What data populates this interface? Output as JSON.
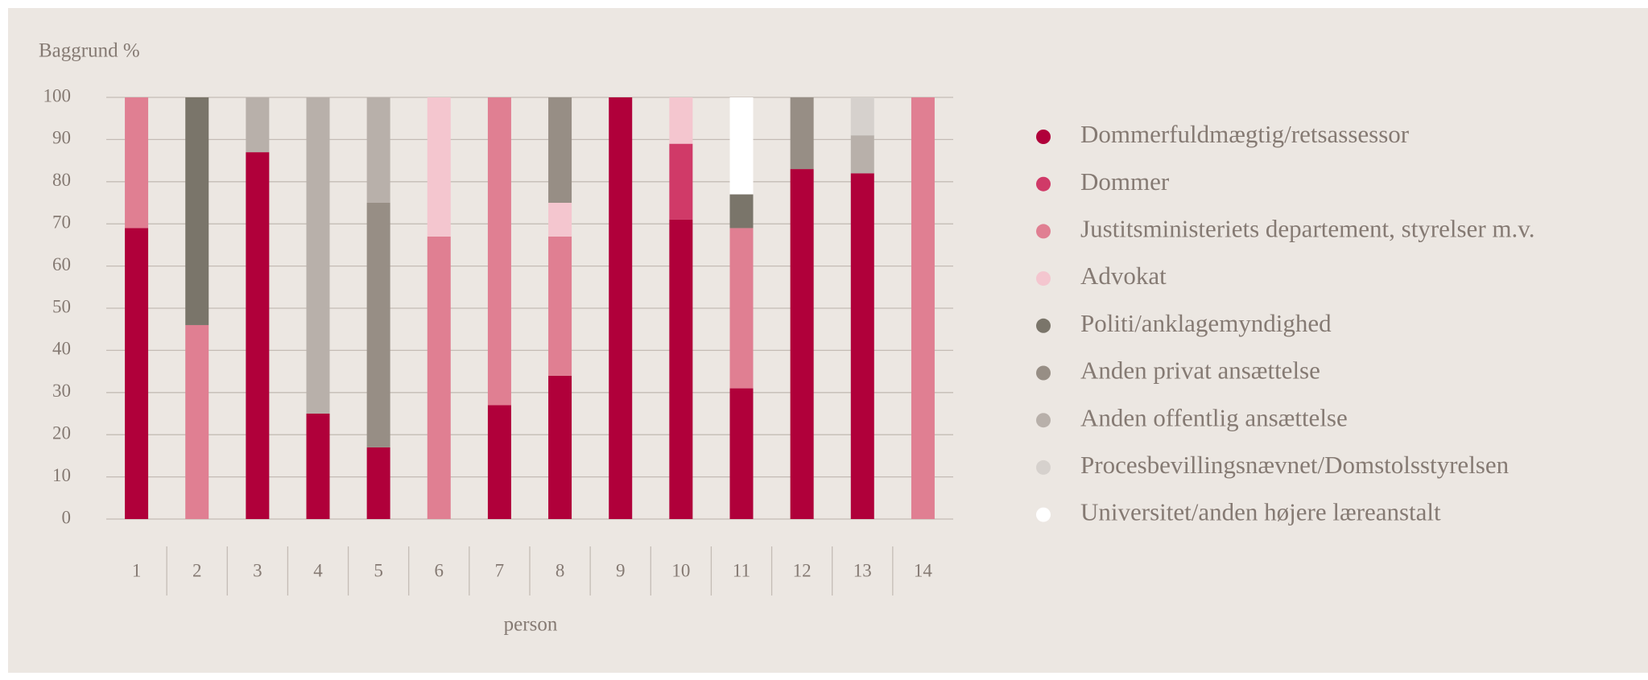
{
  "chart_data": {
    "type": "stacked_bar",
    "title": "Baggrund %",
    "x_label": "person",
    "categories": [
      "1",
      "2",
      "3",
      "4",
      "5",
      "6",
      "7",
      "8",
      "9",
      "10",
      "11",
      "12",
      "13",
      "14"
    ],
    "ylim": [
      0,
      100
    ],
    "yticks": [
      0,
      10,
      20,
      30,
      40,
      50,
      60,
      70,
      80,
      90,
      100
    ],
    "grid": true,
    "series": [
      {
        "name": "Dommerfuldmægtig/retsassessor",
        "color": "#b0003a",
        "values": [
          69,
          null,
          87,
          25,
          17,
          null,
          27,
          34,
          100,
          71,
          31,
          83,
          82,
          null
        ]
      },
      {
        "name": "Dommer",
        "color": "#d03a68",
        "values": [
          null,
          null,
          null,
          null,
          null,
          null,
          null,
          null,
          null,
          18,
          null,
          null,
          null,
          null
        ]
      },
      {
        "name": "Justitsministeriets departement, styrelser m.v.",
        "color": "#e07f92",
        "values": [
          31,
          46,
          null,
          null,
          null,
          67,
          73,
          33,
          null,
          null,
          38,
          null,
          null,
          100
        ]
      },
      {
        "name": "Advokat",
        "color": "#f4c6cf",
        "values": [
          null,
          null,
          null,
          null,
          null,
          33,
          null,
          8,
          null,
          11,
          null,
          null,
          null,
          null
        ]
      },
      {
        "name": "Politi/anklagemyndighed",
        "color": "#7a756a",
        "values": [
          null,
          54,
          null,
          null,
          null,
          null,
          null,
          null,
          null,
          null,
          8,
          null,
          null,
          null
        ]
      },
      {
        "name": "Anden privat ansættelse",
        "color": "#978e85",
        "values": [
          null,
          null,
          null,
          null,
          58,
          null,
          null,
          25,
          null,
          null,
          null,
          17,
          null,
          null
        ]
      },
      {
        "name": "Anden offentlig ansættelse",
        "color": "#b8b0aa",
        "values": [
          null,
          null,
          13,
          75,
          25,
          null,
          null,
          null,
          null,
          null,
          null,
          null,
          9,
          null
        ]
      },
      {
        "name": "Procesbevillingsnævnet/Domstolsstyrelsen",
        "color": "#d6d1cd",
        "values": [
          null,
          null,
          null,
          null,
          null,
          null,
          null,
          null,
          null,
          null,
          null,
          null,
          9,
          null
        ]
      },
      {
        "name": "Universitet/anden højere læreanstalt",
        "color": "#ffffff",
        "values": [
          null,
          null,
          null,
          null,
          null,
          null,
          null,
          null,
          null,
          null,
          23,
          null,
          null,
          null
        ]
      }
    ]
  }
}
